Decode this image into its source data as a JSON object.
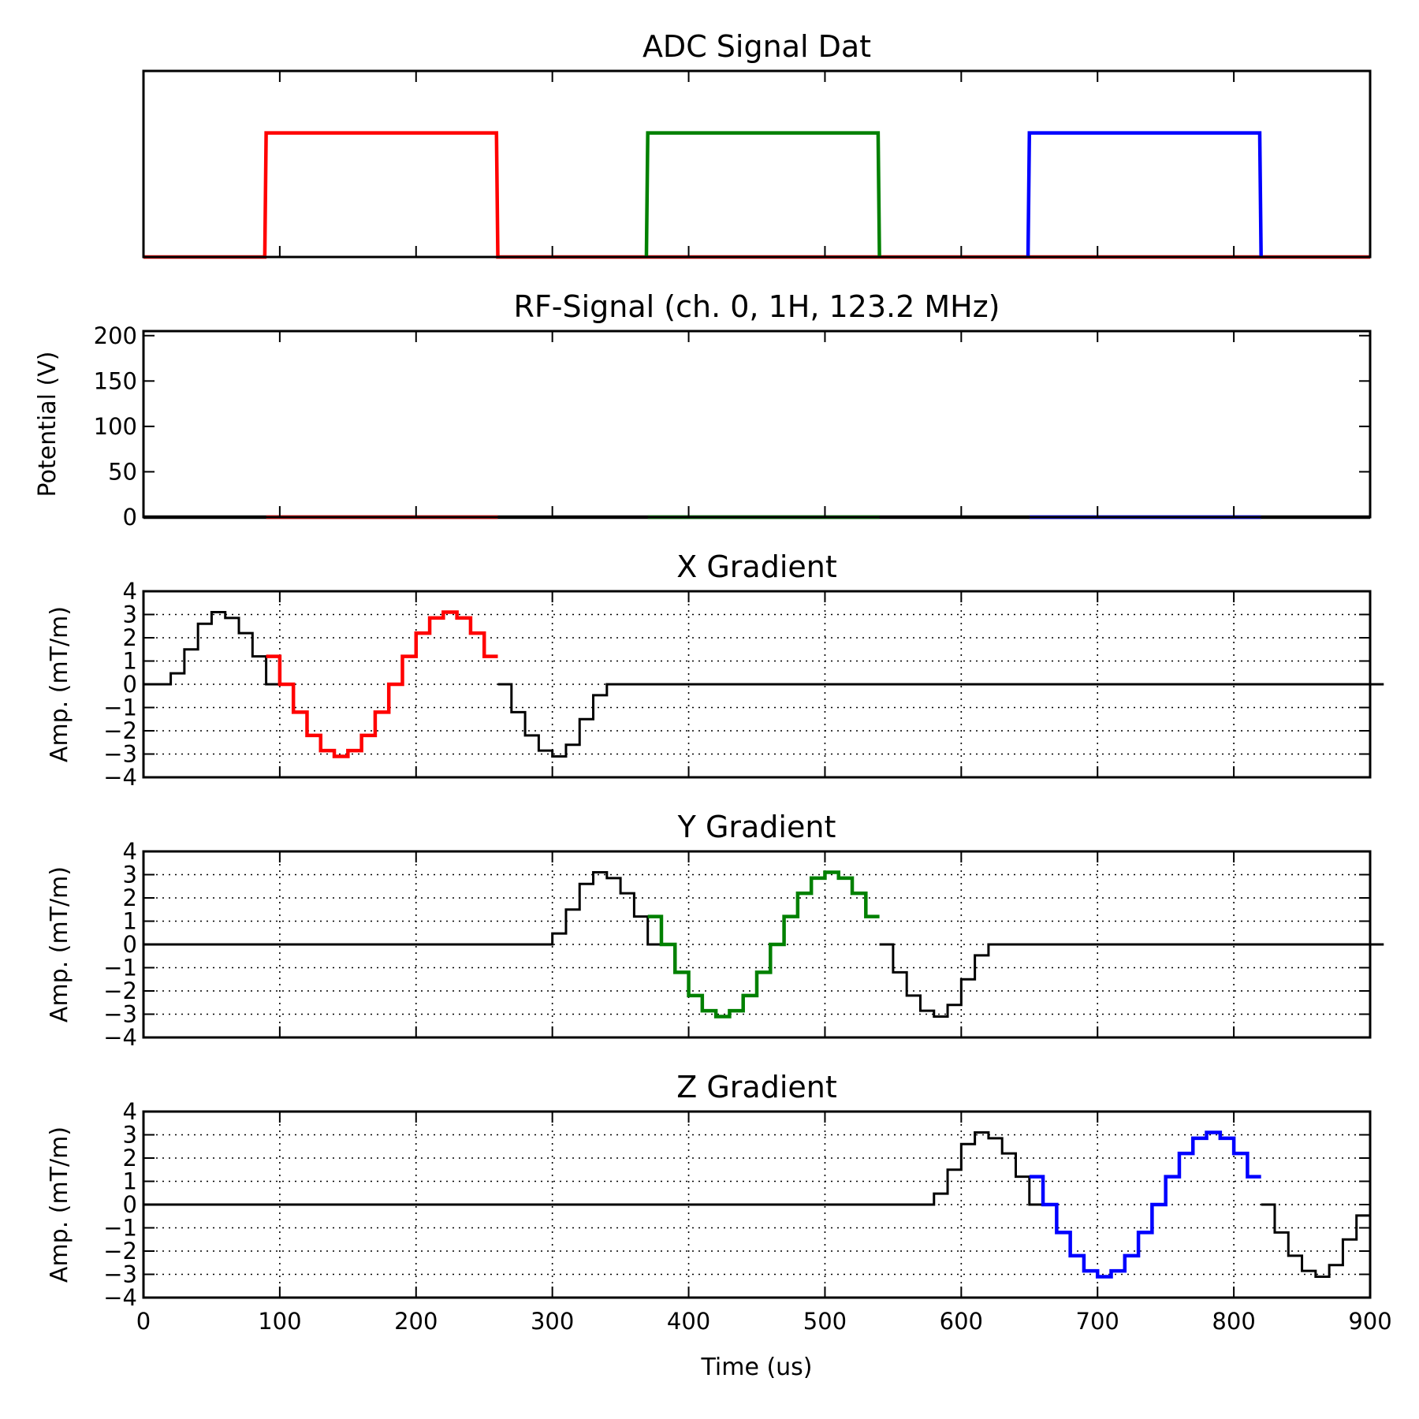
{
  "chart_data": [
    {
      "id": "adc",
      "type": "line",
      "title": "ADC Signal Dat",
      "xlim": [
        0,
        900
      ],
      "ylim": [
        0,
        1.5
      ],
      "grid": false,
      "show_y_ticks": false,
      "show_x_ticklabels": false,
      "ylabel": "",
      "xlabel": "",
      "series": [
        {
          "color": "#ff0000",
          "x": [
            0,
            89,
            90,
            259,
            260,
            900
          ],
          "y": [
            0,
            0,
            1,
            1,
            0,
            0
          ]
        },
        {
          "color": "#008000",
          "x": [
            369,
            370,
            539,
            540
          ],
          "y": [
            0,
            1,
            1,
            0
          ]
        },
        {
          "color": "#0000ff",
          "x": [
            649,
            650,
            819,
            820
          ],
          "y": [
            0,
            1,
            1,
            0
          ]
        }
      ]
    },
    {
      "id": "rf",
      "type": "line",
      "title": "RF-Signal (ch. 0, 1H, 123.2 MHz)",
      "ylabel": "Potential (V)",
      "xlabel": "",
      "xlim": [
        0,
        900
      ],
      "ylim": [
        0,
        205
      ],
      "yticks": [
        0,
        50,
        100,
        150,
        200
      ],
      "grid": false,
      "show_x_ticklabels": false,
      "series": [
        {
          "color": "#000000",
          "x": [
            0,
            900
          ],
          "y": [
            0,
            0
          ]
        },
        {
          "color": "#ff0000",
          "x": [
            90,
            260
          ],
          "y": [
            0,
            0
          ]
        },
        {
          "color": "#008000",
          "x": [
            370,
            540
          ],
          "y": [
            0,
            0
          ]
        },
        {
          "color": "#0000ff",
          "x": [
            650,
            820
          ],
          "y": [
            0,
            0
          ]
        }
      ]
    },
    {
      "id": "xg",
      "type": "line",
      "title": "X Gradient",
      "ylabel": "Amp. (mT/m)",
      "xlabel": "",
      "xlim": [
        0,
        900
      ],
      "ylim": [
        -4,
        4
      ],
      "yticks": [
        -4,
        -3,
        -2,
        -1,
        0,
        1,
        2,
        3,
        4
      ],
      "grid": true,
      "show_x_ticklabels": false,
      "line_style": "step",
      "step_width": 10,
      "series": [
        {
          "color": "#000000",
          "width": 3,
          "x": [
            0,
            10,
            20,
            30,
            40,
            50,
            60,
            70,
            80,
            90
          ],
          "y": [
            0,
            0,
            0.47,
            1.5,
            2.6,
            3.1,
            2.85,
            2.2,
            1.2,
            0
          ]
        },
        {
          "color": "#ff0000",
          "width": 4.5,
          "x": [
            90,
            100,
            110,
            120,
            130,
            140,
            150,
            160,
            170,
            180,
            190,
            200,
            210,
            220,
            230,
            240,
            250
          ],
          "y": [
            1.2,
            0,
            -1.2,
            -2.2,
            -2.85,
            -3.1,
            -2.85,
            -2.2,
            -1.2,
            0,
            1.2,
            2.2,
            2.85,
            3.1,
            2.85,
            2.2,
            1.2
          ]
        },
        {
          "color": "#000000",
          "width": 3,
          "x": [
            260,
            270,
            280,
            290,
            300,
            310,
            320,
            330,
            340,
            900
          ],
          "y": [
            0,
            -1.2,
            -2.2,
            -2.85,
            -3.1,
            -2.6,
            -1.5,
            -0.47,
            0,
            0
          ]
        }
      ]
    },
    {
      "id": "yg",
      "type": "line",
      "title": "Y Gradient",
      "ylabel": "Amp. (mT/m)",
      "xlabel": "",
      "xlim": [
        0,
        900
      ],
      "ylim": [
        -4,
        4
      ],
      "yticks": [
        -4,
        -3,
        -2,
        -1,
        0,
        1,
        2,
        3,
        4
      ],
      "grid": true,
      "show_x_ticklabels": false,
      "line_style": "step",
      "step_width": 10,
      "series": [
        {
          "color": "#000000",
          "width": 3,
          "x": [
            0,
            300,
            310,
            320,
            330,
            340,
            350,
            360,
            370
          ],
          "y": [
            0,
            0.47,
            1.5,
            2.6,
            3.1,
            2.85,
            2.2,
            1.2,
            0
          ]
        },
        {
          "color": "#008000",
          "width": 4.5,
          "x": [
            370,
            380,
            390,
            400,
            410,
            420,
            430,
            440,
            450,
            460,
            470,
            480,
            490,
            500,
            510,
            520,
            530
          ],
          "y": [
            1.2,
            0,
            -1.2,
            -2.2,
            -2.85,
            -3.1,
            -2.85,
            -2.2,
            -1.2,
            0,
            1.2,
            2.2,
            2.85,
            3.1,
            2.85,
            2.2,
            1.2
          ]
        },
        {
          "color": "#000000",
          "width": 3,
          "x": [
            540,
            550,
            560,
            570,
            580,
            590,
            600,
            610,
            620,
            900
          ],
          "y": [
            0,
            -1.2,
            -2.2,
            -2.85,
            -3.1,
            -2.6,
            -1.5,
            -0.47,
            0,
            0
          ]
        }
      ]
    },
    {
      "id": "zg",
      "type": "line",
      "title": "Z Gradient",
      "ylabel": "Amp. (mT/m)",
      "xlabel": "Time (us)",
      "xlim": [
        0,
        900
      ],
      "ylim": [
        -4,
        4
      ],
      "yticks": [
        -4,
        -3,
        -2,
        -1,
        0,
        1,
        2,
        3,
        4
      ],
      "xticks": [
        0,
        100,
        200,
        300,
        400,
        500,
        600,
        700,
        800,
        900
      ],
      "grid": true,
      "show_x_ticklabels": true,
      "line_style": "step",
      "step_width": 10,
      "series": [
        {
          "color": "#000000",
          "width": 3,
          "x": [
            0,
            580,
            590,
            600,
            610,
            620,
            630,
            640,
            650
          ],
          "y": [
            0,
            0.47,
            1.5,
            2.6,
            3.1,
            2.85,
            2.2,
            1.2,
            0
          ]
        },
        {
          "color": "#0000ff",
          "width": 4.5,
          "x": [
            650,
            660,
            670,
            680,
            690,
            700,
            710,
            720,
            730,
            740,
            750,
            760,
            770,
            780,
            790,
            800,
            810
          ],
          "y": [
            1.2,
            0,
            -1.2,
            -2.2,
            -2.85,
            -3.1,
            -2.85,
            -2.2,
            -1.2,
            0,
            1.2,
            2.2,
            2.85,
            3.1,
            2.85,
            2.2,
            1.2
          ]
        },
        {
          "color": "#000000",
          "width": 3,
          "x": [
            820,
            830,
            840,
            850,
            860,
            870,
            880,
            890
          ],
          "y": [
            0,
            -1.2,
            -2.2,
            -2.85,
            -3.1,
            -2.6,
            -1.5,
            -0.47
          ]
        }
      ]
    }
  ]
}
